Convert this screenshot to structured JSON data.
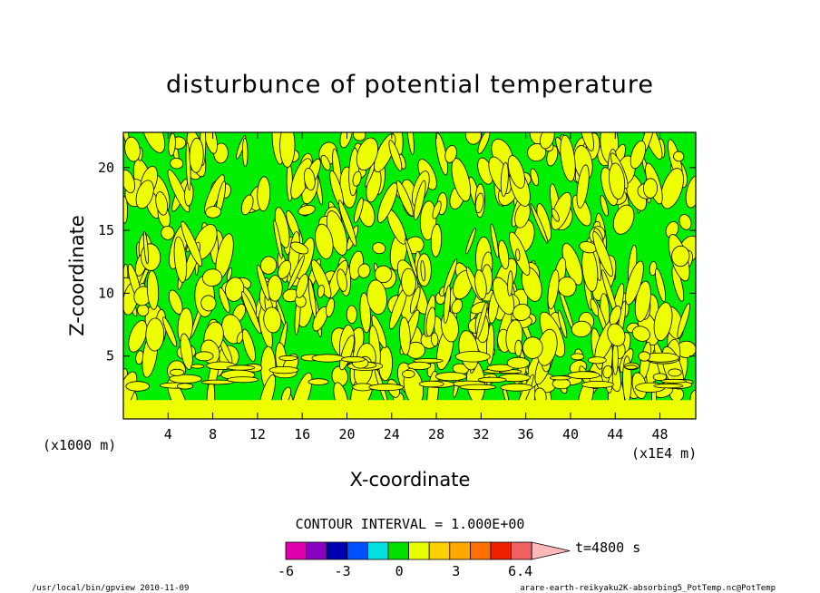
{
  "chart_data": {
    "type": "heatmap",
    "title": "disturbunce of potential temperature",
    "xlabel": "X-coordinate",
    "ylabel": "Z-coordinate",
    "x_unit_left": "(x1000 m)",
    "x_unit_right": "(x1E4 m)",
    "x_ticks": [
      "4",
      "8",
      "12",
      "16",
      "20",
      "24",
      "28",
      "32",
      "36",
      "40",
      "44",
      "48"
    ],
    "x_tick_values": [
      4,
      8,
      12,
      16,
      20,
      24,
      28,
      32,
      36,
      40,
      44,
      48
    ],
    "xlim": [
      0,
      51.2
    ],
    "y_ticks": [
      "5",
      "10",
      "15",
      "20"
    ],
    "y_tick_values": [
      5,
      10,
      15,
      20
    ],
    "ylim": [
      0,
      22.8
    ],
    "contour_interval_text": "CONTOUR INTERVAL = 1.000E+00",
    "time_text": "t=4800 s",
    "colorbar": {
      "labels": [
        "-6",
        "-3",
        "0",
        "3",
        "6.4"
      ],
      "label_values": [
        -6,
        -3,
        0,
        3,
        6.4
      ],
      "colors": [
        "#e000b0",
        "#8800c0",
        "#0000b0",
        "#0050ff",
        "#00e0e0",
        "#00e000",
        "#e8ff00",
        "#ffd000",
        "#ffa800",
        "#ff7000",
        "#f02000",
        "#f06060",
        "#ffb8b8"
      ],
      "min": -6,
      "max": 7
    },
    "field": {
      "background_color": "#00ee00",
      "positive_color": "#eeff00",
      "boundary_layer_top": 1.5,
      "description_values": "field dominated by -1..0 (green) with 0..1 (yellow) anomalies"
    },
    "footer_left": "/usr/local/bin/gpview  2010-11-09",
    "footer_right": "arare-earth-reikyaku2K-absorbing5_PotTemp.nc@PotTemp"
  }
}
